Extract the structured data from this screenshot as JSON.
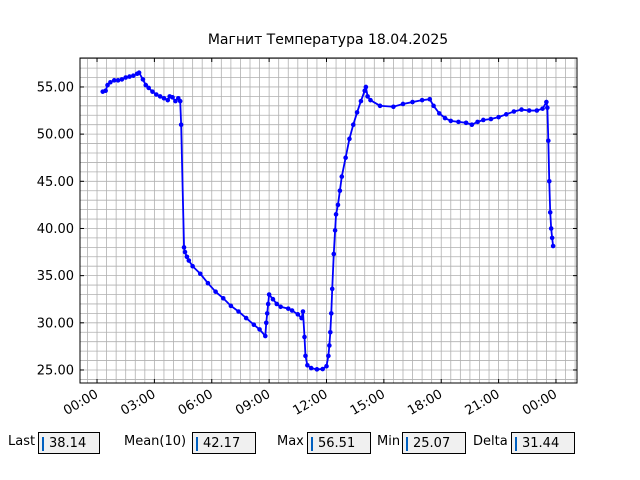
{
  "chart_data": {
    "type": "line",
    "title": "Магнит Температура 18.04.2025",
    "x": [
      0.3,
      0.45,
      0.55,
      0.7,
      0.9,
      1.1,
      1.3,
      1.5,
      1.7,
      1.9,
      2.1,
      2.2,
      2.4,
      2.55,
      2.7,
      2.9,
      3.1,
      3.3,
      3.5,
      3.7,
      3.8,
      3.95,
      4.1,
      4.25,
      4.35,
      4.4,
      4.55,
      4.6,
      4.7,
      4.8,
      5.0,
      5.4,
      5.8,
      6.2,
      6.6,
      7.0,
      7.4,
      7.8,
      8.2,
      8.5,
      8.8,
      8.85,
      8.9,
      8.95,
      9.0,
      9.2,
      9.4,
      9.6,
      10.0,
      10.2,
      10.5,
      10.7,
      10.77,
      10.85,
      10.9,
      11.0,
      11.2,
      11.5,
      11.8,
      12.0,
      12.1,
      12.15,
      12.2,
      12.25,
      12.3,
      12.38,
      12.45,
      12.5,
      12.6,
      12.7,
      12.8,
      13.0,
      13.2,
      13.4,
      13.6,
      13.8,
      14.0,
      14.06,
      14.15,
      14.3,
      14.8,
      15.5,
      16.0,
      16.5,
      17.0,
      17.4,
      17.6,
      17.9,
      18.2,
      18.5,
      18.9,
      19.3,
      19.6,
      19.9,
      20.2,
      20.6,
      21.0,
      21.4,
      21.8,
      22.2,
      22.6,
      23.0,
      23.3,
      23.5,
      23.55,
      23.6,
      23.65,
      23.7,
      23.75,
      23.8,
      23.85
    ],
    "series": [
      {
        "name": "Температура",
        "color": "#0000ff",
        "values": [
          54.5,
          54.6,
          55.2,
          55.5,
          55.7,
          55.7,
          55.8,
          56.0,
          56.1,
          56.2,
          56.4,
          56.51,
          55.8,
          55.2,
          54.9,
          54.5,
          54.2,
          54.0,
          53.8,
          53.6,
          54.0,
          53.9,
          53.5,
          53.8,
          53.5,
          51.0,
          38.0,
          37.5,
          37.0,
          36.6,
          36.0,
          35.2,
          34.2,
          33.3,
          32.6,
          31.8,
          31.2,
          30.5,
          29.8,
          29.3,
          28.6,
          30.0,
          31.0,
          32.0,
          33.0,
          32.5,
          32.0,
          31.7,
          31.5,
          31.3,
          30.9,
          30.5,
          31.2,
          28.5,
          26.5,
          25.5,
          25.2,
          25.07,
          25.1,
          25.4,
          26.5,
          27.6,
          29.0,
          31.0,
          33.6,
          37.3,
          39.8,
          41.5,
          42.5,
          44.0,
          45.5,
          47.5,
          49.5,
          51.0,
          52.3,
          53.5,
          54.6,
          55.0,
          54.0,
          53.6,
          53.0,
          52.9,
          53.2,
          53.4,
          53.6,
          53.7,
          53.0,
          52.2,
          51.7,
          51.4,
          51.3,
          51.2,
          51.0,
          51.3,
          51.5,
          51.6,
          51.8,
          52.1,
          52.4,
          52.6,
          52.5,
          52.5,
          52.7,
          53.4,
          52.8,
          49.3,
          45.0,
          41.7,
          40.0,
          39.0,
          38.14
        ]
      }
    ],
    "xlim": [
      -0.89,
      25.1
    ],
    "xticks": [
      {
        "value": 0,
        "label": "00:00"
      },
      {
        "value": 3,
        "label": "03:00"
      },
      {
        "value": 6,
        "label": "06:00"
      },
      {
        "value": 9,
        "label": "09:00"
      },
      {
        "value": 12,
        "label": "12:00"
      },
      {
        "value": 15,
        "label": "15:00"
      },
      {
        "value": 18,
        "label": "18:00"
      },
      {
        "value": 21,
        "label": "21:00"
      },
      {
        "value": 24,
        "label": "00:00"
      }
    ],
    "ylim": [
      23.62,
      58.07
    ],
    "yticks": [
      {
        "value": 25,
        "label": "25.00"
      },
      {
        "value": 30,
        "label": "30.00"
      },
      {
        "value": 35,
        "label": "35.00"
      },
      {
        "value": 40,
        "label": "40.00"
      },
      {
        "value": 45,
        "label": "45.00"
      },
      {
        "value": 50,
        "label": "50.00"
      },
      {
        "value": 55,
        "label": "55.00"
      }
    ],
    "grid": true,
    "minor_per_major": {
      "x": 6,
      "y": 5
    }
  },
  "stats": [
    {
      "label": "Last",
      "value": 38.14
    },
    {
      "label": "Mean(10)",
      "value": 42.17
    },
    {
      "label": "Max",
      "value": 56.51
    },
    {
      "label": "Min",
      "value": 25.07
    },
    {
      "label": "Delta",
      "value": 31.44
    }
  ]
}
